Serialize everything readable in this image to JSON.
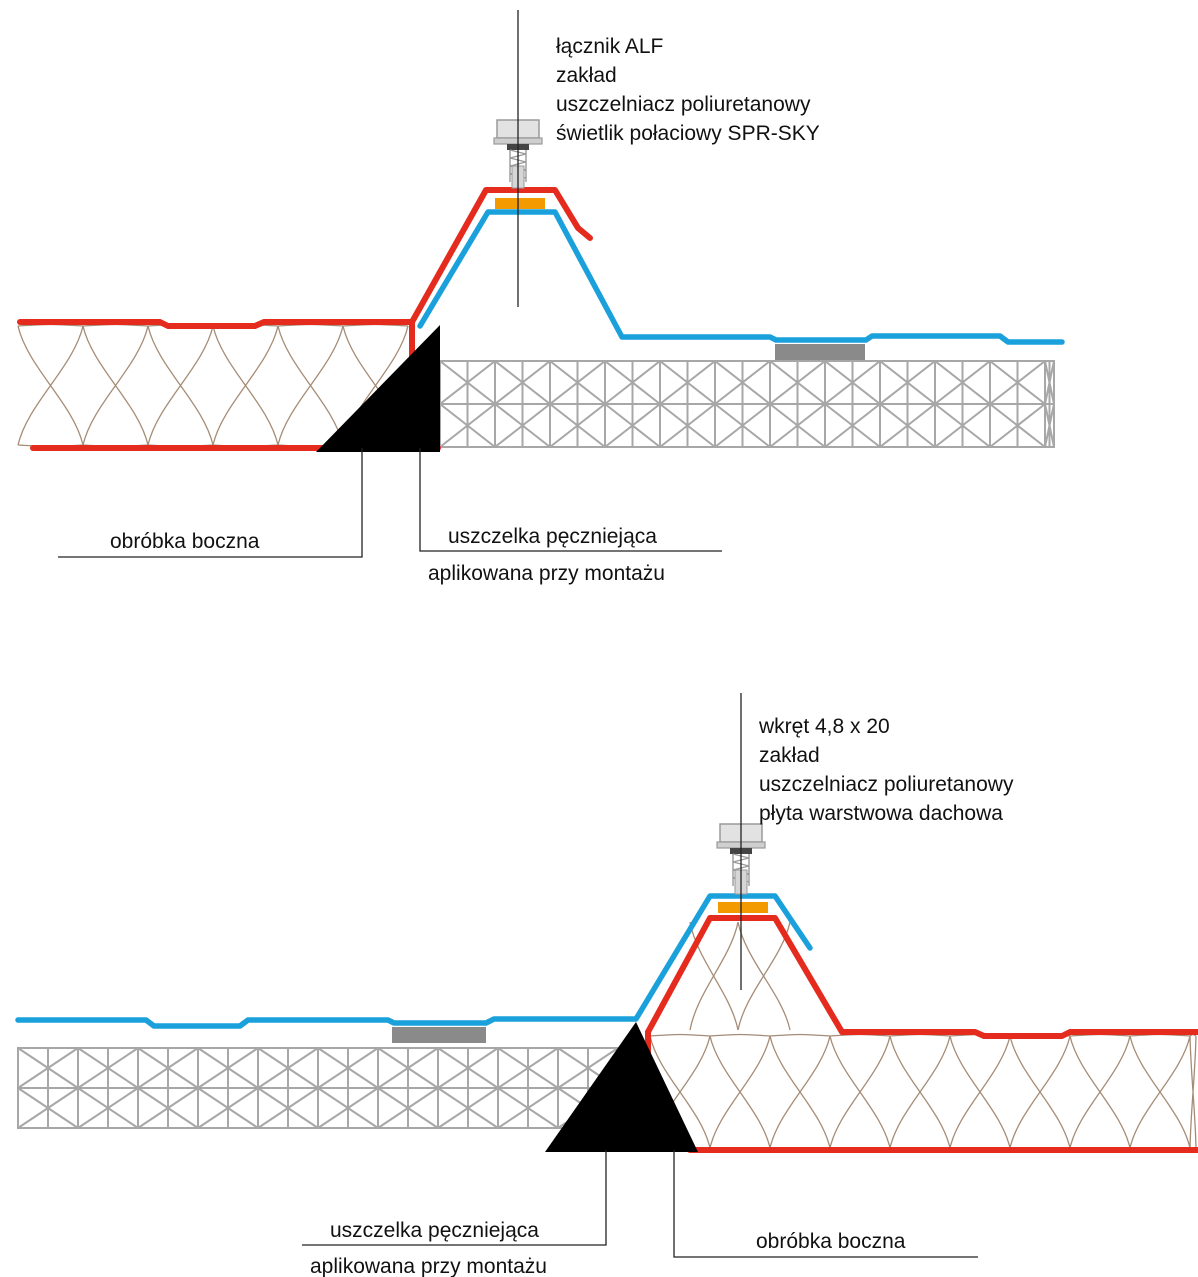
{
  "detail_top": {
    "callout": [
      "łącznik ALF",
      "zakład",
      "uszczelniacz poliuretanowy",
      "świetlik połaciowy SPR-SKY"
    ],
    "label_flashing": "obróbka boczna",
    "label_seal_line1": "uszczelka pęczniejąca",
    "label_seal_line2": "aplikowana przy montażu"
  },
  "detail_bottom": {
    "callout": [
      "wkręt 4,8 x 20",
      "zakład",
      "uszczelniacz poliuretanowy",
      "płyta warstwowa dachowa"
    ],
    "label_flashing": "obróbka boczna",
    "label_seal_line1": "uszczelka pęczniejąca",
    "label_seal_line2": "aplikowana przy montażu"
  },
  "colors": {
    "steel_sheet_red": "#e52b1d",
    "skylight_sheet_blue": "#1aa0db",
    "sealant_orange": "#f29a00",
    "triangle_black": "#000000",
    "mesh_grey": "#a7a7a7",
    "gasket_grey": "#8a8a8a",
    "wool_brown": "#a58c76"
  },
  "icons": {
    "fastener": "screw-icon"
  }
}
